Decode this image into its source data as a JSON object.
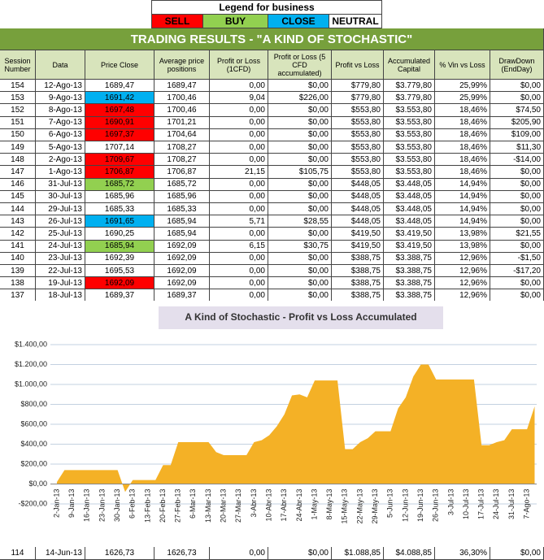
{
  "legend": {
    "title": "Legend for business",
    "items": [
      {
        "label": "SELL",
        "color": "#ff0000"
      },
      {
        "label": "BUY",
        "color": "#92d050"
      },
      {
        "label": "CLOSE",
        "color": "#00b0f0"
      },
      {
        "label": "NEUTRAL",
        "color": "#ffffff"
      }
    ]
  },
  "table": {
    "title": "TRADING RESULTS - \"A KIND OF STOCHASTIC\"",
    "header": [
      "Session Number",
      "Data",
      "Price Close",
      "Average price positions",
      "Profit or Loss (1CFD)",
      "Profit or Loss (5 CFD accumulated)",
      "Profit vs Loss",
      "Accumulated Capital",
      "% Vin vs Loss",
      "DrawDown (EndDay)"
    ],
    "rows": [
      [
        "154",
        "12-Ago-13",
        "1689,47",
        "1689,47",
        "0,00",
        "$0,00",
        "$779,80",
        "$3.779,80",
        "25,99%",
        "$0,00"
      ],
      [
        "153",
        "9-Ago-13",
        "1691,42",
        "1700,46",
        "9,04",
        "$226,00",
        "$779,80",
        "$3.779,80",
        "25,99%",
        "$0,00"
      ],
      [
        "152",
        "8-Ago-13",
        "1697,48",
        "1700,46",
        "0,00",
        "$0,00",
        "$553,80",
        "$3.553,80",
        "18,46%",
        "$74,50"
      ],
      [
        "151",
        "7-Ago-13",
        "1690,91",
        "1701,21",
        "0,00",
        "$0,00",
        "$553,80",
        "$3.553,80",
        "18,46%",
        "$205,90"
      ],
      [
        "150",
        "6-Ago-13",
        "1697,37",
        "1704,64",
        "0,00",
        "$0,00",
        "$553,80",
        "$3.553,80",
        "18,46%",
        "$109,00"
      ],
      [
        "149",
        "5-Ago-13",
        "1707,14",
        "1708,27",
        "0,00",
        "$0,00",
        "$553,80",
        "$3.553,80",
        "18,46%",
        "$11,30"
      ],
      [
        "148",
        "2-Ago-13",
        "1709,67",
        "1708,27",
        "0,00",
        "$0,00",
        "$553,80",
        "$3.553,80",
        "18,46%",
        "-$14,00"
      ],
      [
        "147",
        "1-Ago-13",
        "1706,87",
        "1706,87",
        "21,15",
        "$105,75",
        "$553,80",
        "$3.553,80",
        "18,46%",
        "$0,00"
      ],
      [
        "146",
        "31-Jul-13",
        "1685,72",
        "1685,72",
        "0,00",
        "$0,00",
        "$448,05",
        "$3.448,05",
        "14,94%",
        "$0,00"
      ],
      [
        "145",
        "30-Jul-13",
        "1685,96",
        "1685,96",
        "0,00",
        "$0,00",
        "$448,05",
        "$3.448,05",
        "14,94%",
        "$0,00"
      ],
      [
        "144",
        "29-Jul-13",
        "1685,33",
        "1685,33",
        "0,00",
        "$0,00",
        "$448,05",
        "$3.448,05",
        "14,94%",
        "$0,00"
      ],
      [
        "143",
        "26-Jul-13",
        "1691,65",
        "1685,94",
        "5,71",
        "$28,55",
        "$448,05",
        "$3.448,05",
        "14,94%",
        "$0,00"
      ],
      [
        "142",
        "25-Jul-13",
        "1690,25",
        "1685,94",
        "0,00",
        "$0,00",
        "$419,50",
        "$3.419,50",
        "13,98%",
        "$21,55"
      ],
      [
        "141",
        "24-Jul-13",
        "1685,94",
        "1692,09",
        "6,15",
        "$30,75",
        "$419,50",
        "$3.419,50",
        "13,98%",
        "$0,00"
      ],
      [
        "140",
        "23-Jul-13",
        "1692,39",
        "1692,09",
        "0,00",
        "$0,00",
        "$388,75",
        "$3.388,75",
        "12,96%",
        "-$1,50"
      ],
      [
        "139",
        "22-Jul-13",
        "1695,53",
        "1692,09",
        "0,00",
        "$0,00",
        "$388,75",
        "$3.388,75",
        "12,96%",
        "-$17,20"
      ],
      [
        "138",
        "19-Jul-13",
        "1692,09",
        "1692,09",
        "0,00",
        "$0,00",
        "$388,75",
        "$3.388,75",
        "12,96%",
        "$0,00"
      ],
      [
        "137",
        "18-Jul-13",
        "1689,37",
        "1689,37",
        "0,00",
        "$0,00",
        "$388,75",
        "$3.388,75",
        "12,96%",
        "$0,00"
      ]
    ],
    "price_fills": [
      "#ffffff",
      "#00b0f0",
      "#ff0000",
      "#ff0000",
      "#ff0000",
      "#ffffff",
      "#ff0000",
      "#ff0000",
      "#92d050",
      "#ffffff",
      "#ffffff",
      "#00b0f0",
      "#ffffff",
      "#92d050",
      "#ffffff",
      "#ffffff",
      "#ff0000",
      "#ffffff"
    ],
    "bottom_row": [
      "114",
      "14-Jun-13",
      "1626,73",
      "1626,73",
      "0,00",
      "$0,00",
      "$1.088,85",
      "$4.088,85",
      "36,30%",
      "$0,00"
    ]
  },
  "chart_data": {
    "type": "area",
    "title": "A Kind of Stochastic - Profit vs Loss Accumulated",
    "color": "#f4b126",
    "grid": true,
    "categories": [
      "2-Jan-13",
      null,
      "9-Jan-13",
      null,
      "16-Jan-13",
      null,
      "23-Jan-13",
      null,
      "30-Jan-13",
      null,
      "6-Feb-13",
      null,
      "13-Feb-13",
      null,
      "20-Feb-13",
      null,
      "27-Feb-13",
      null,
      "6-Mar-13",
      null,
      "13-Mar-13",
      null,
      "20-Mar-13",
      null,
      "27-Mar-13",
      null,
      "3-Abr-13",
      null,
      "10-Abr-13",
      null,
      "17-Abr-13",
      null,
      "24-Abr-13",
      null,
      "1-May-13",
      null,
      "8-May-13",
      null,
      "15-May-13",
      null,
      "22-May-13",
      null,
      "29-May-13",
      null,
      "5-Jun-13",
      null,
      "12-Jun-13",
      null,
      "19-Jun-13",
      null,
      "26-Jun-13",
      null,
      "3-Jul-13",
      null,
      "10-Jul-13",
      null,
      "17-Jul-13",
      null,
      "24-Jul-13",
      null,
      "31-Jul-13",
      null,
      "7-Ago-13",
      null
    ],
    "values": [
      20,
      140,
      140,
      140,
      140,
      140,
      140,
      140,
      140,
      -80,
      40,
      40,
      40,
      40,
      190,
      190,
      420,
      420,
      420,
      420,
      420,
      320,
      290,
      290,
      290,
      290,
      420,
      440,
      490,
      580,
      700,
      890,
      900,
      870,
      1040,
      1040,
      1040,
      1040,
      350,
      350,
      420,
      460,
      530,
      530,
      530,
      760,
      870,
      1080,
      1200,
      1200,
      1050,
      1050,
      1050,
      1050,
      1050,
      1050,
      390,
      390,
      420,
      440,
      550,
      550,
      550,
      780
    ],
    "ylim": [
      -200,
      1400
    ],
    "yticks": [
      {
        "value": -200,
        "label": "-$200,00"
      },
      {
        "value": 0,
        "label": "$0,00"
      },
      {
        "value": 200,
        "label": "$200,00"
      },
      {
        "value": 400,
        "label": "$400,00"
      },
      {
        "value": 600,
        "label": "$600,00"
      },
      {
        "value": 800,
        "label": "$800,00"
      },
      {
        "value": 1000,
        "label": "$1.000,00"
      },
      {
        "value": 1200,
        "label": "$1.200,00"
      },
      {
        "value": 1400,
        "label": "$1.400,00"
      }
    ]
  }
}
